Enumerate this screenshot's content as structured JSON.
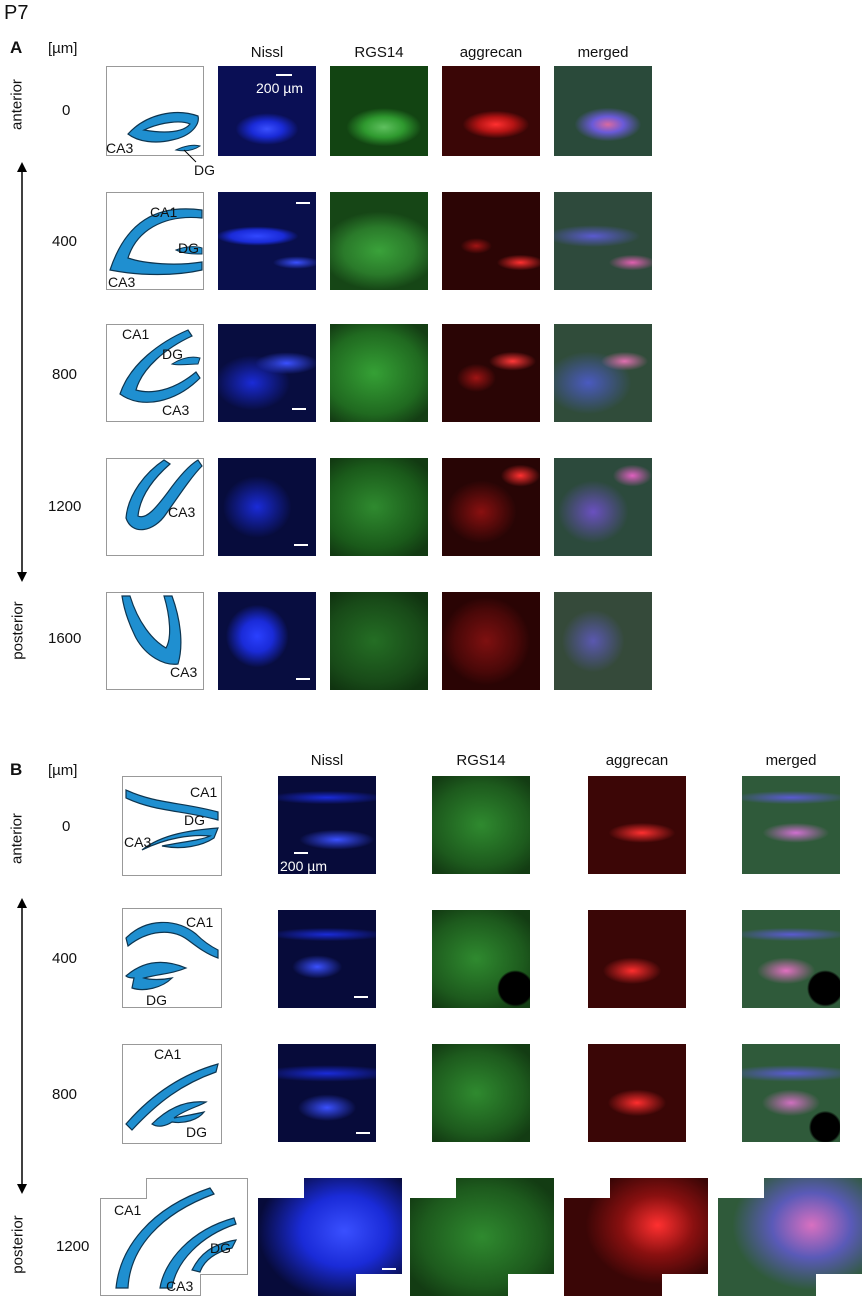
{
  "figure": {
    "age_label": "P7",
    "section_a": {
      "label": "A",
      "unit": "[µm]",
      "axis_top": "anterior",
      "axis_bottom": "posterior",
      "columns": [
        "Nissl",
        "RGS14",
        "aggrecan",
        "merged"
      ],
      "scale_label": "200 µm",
      "rows": [
        {
          "depth": "0",
          "labels": [
            "CA3",
            "DG"
          ]
        },
        {
          "depth": "400",
          "labels": [
            "CA1",
            "DG",
            "CA3"
          ]
        },
        {
          "depth": "800",
          "labels": [
            "CA1",
            "DG",
            "CA3"
          ]
        },
        {
          "depth": "1200",
          "labels": [
            "CA3"
          ]
        },
        {
          "depth": "1600",
          "labels": [
            "CA3"
          ]
        }
      ]
    },
    "section_b": {
      "label": "B",
      "unit": "[µm]",
      "axis_top": "anterior",
      "axis_bottom": "posterior",
      "columns": [
        "Nissl",
        "RGS14",
        "aggrecan",
        "merged"
      ],
      "scale_label": "200 µm",
      "rows": [
        {
          "depth": "0",
          "labels": [
            "CA1",
            "DG",
            "CA3"
          ]
        },
        {
          "depth": "400",
          "labels": [
            "CA1",
            "DG"
          ]
        },
        {
          "depth": "800",
          "labels": [
            "CA1",
            "DG"
          ]
        },
        {
          "depth": "1200",
          "labels": [
            "CA1",
            "DG",
            "CA3"
          ]
        }
      ]
    },
    "colors": {
      "scheme_fill": "#1f8fd0",
      "nissl": "#1a2bd8",
      "rgs14": "#2f9a2f",
      "aggrecan": "#d81a1a",
      "merged": "#5a6a8a"
    }
  }
}
